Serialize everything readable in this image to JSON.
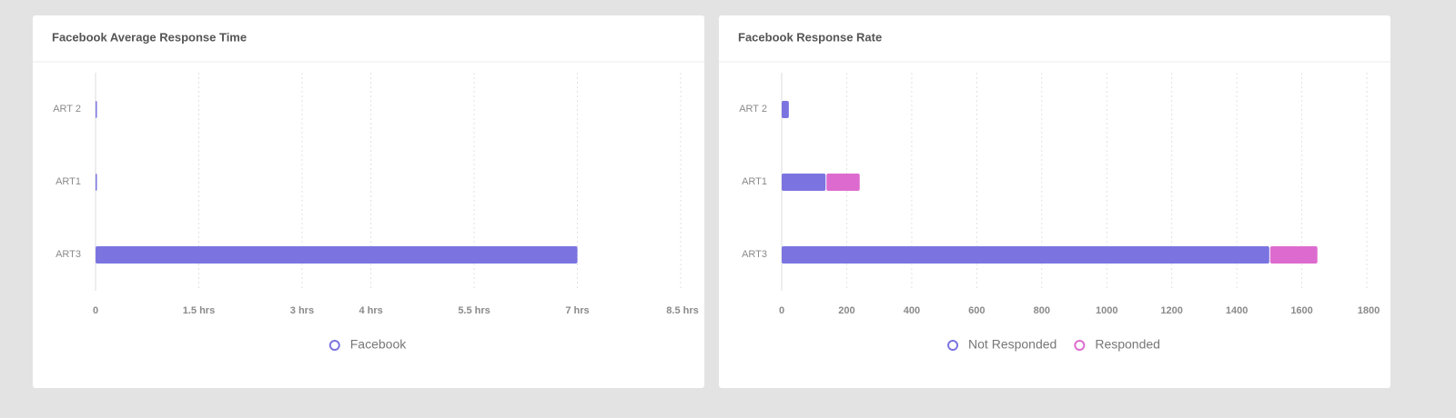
{
  "chart_data": [
    {
      "type": "bar",
      "orientation": "horizontal",
      "title": "Facebook Average Response Time",
      "categories": [
        "ART 2",
        "ART1",
        "ART3"
      ],
      "series": [
        {
          "name": "Facebook",
          "color": "#7b74e0",
          "values": [
            0.02,
            0.02,
            7
          ]
        }
      ],
      "xlim": [
        0,
        8.5
      ],
      "xticks": [
        0,
        {
          "value": 1.5,
          "label": "1.5 hrs"
        },
        {
          "value": 3,
          "label": "3 hrs"
        },
        {
          "value": 4,
          "label": "4 hrs"
        },
        {
          "value": 5.5,
          "label": "5.5 hrs"
        },
        {
          "value": 7,
          "label": "7 hrs"
        },
        {
          "value": 8.5,
          "label": "8.5 hrs"
        }
      ],
      "grid": true
    },
    {
      "type": "bar",
      "orientation": "horizontal",
      "stacked": true,
      "title": "Facebook Response Rate",
      "categories": [
        "ART 2",
        "ART1",
        "ART3"
      ],
      "series": [
        {
          "name": "Not Responded",
          "color": "#7b74e0",
          "values": [
            22,
            135,
            1500
          ]
        },
        {
          "name": "Responded",
          "color": "#dd6bcf",
          "values": [
            0,
            105,
            148
          ]
        }
      ],
      "xlim": [
        0,
        1800
      ],
      "xticks": [
        0,
        200,
        400,
        600,
        800,
        1000,
        1200,
        1400,
        1600,
        1800
      ],
      "grid": true
    }
  ]
}
